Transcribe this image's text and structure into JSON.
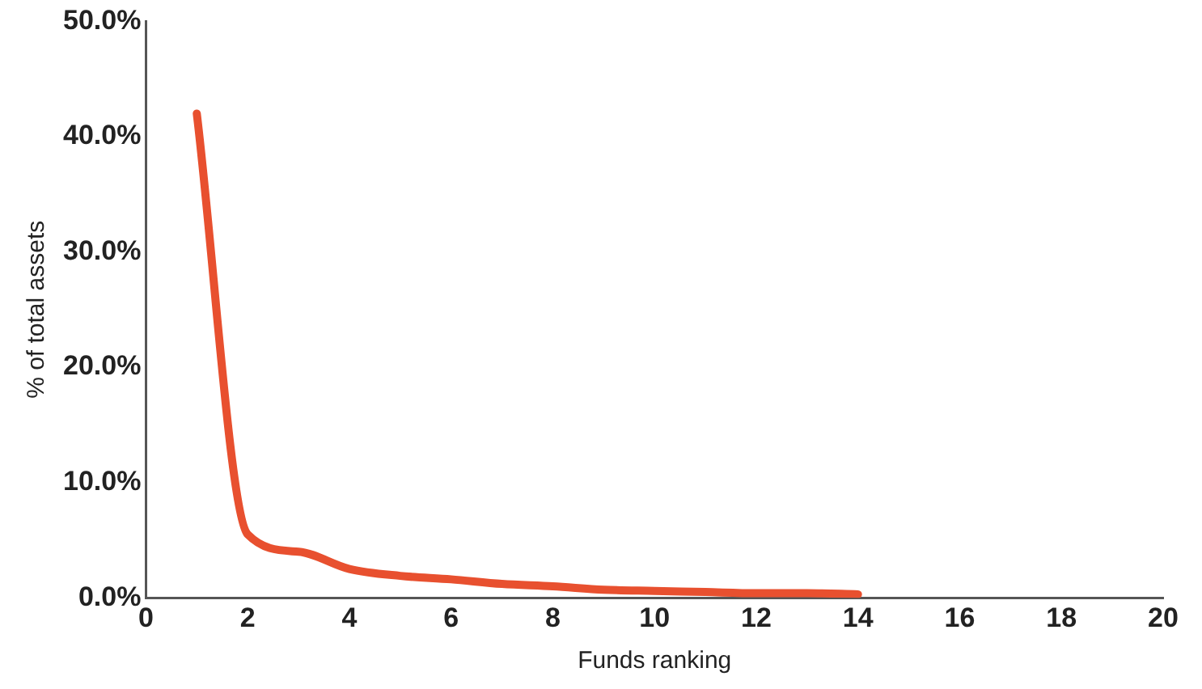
{
  "chart_data": {
    "type": "line",
    "xlabel": "Funds ranking",
    "ylabel": "% of total assets",
    "x": [
      1,
      2,
      3,
      4,
      5,
      6,
      7,
      8,
      9,
      10,
      11,
      12,
      13,
      14
    ],
    "series": [
      {
        "color": "#e8502f",
        "values": [
          42,
          5.5,
          4,
          2.5,
          1.9,
          1.6,
          1.2,
          1,
          0.7,
          0.6,
          0.5,
          0.4,
          0.4,
          0.3
        ]
      }
    ],
    "xlim": [
      0,
      20
    ],
    "xticks": [
      0,
      2,
      4,
      6,
      8,
      10,
      12,
      14,
      16,
      18,
      20
    ],
    "ylim": [
      0,
      50
    ],
    "yticks": [
      {
        "value": 0,
        "label": "0.0%"
      },
      {
        "value": 10,
        "label": "10.0%"
      },
      {
        "value": 20,
        "label": "20.0%"
      },
      {
        "value": 30,
        "label": "30.0%"
      },
      {
        "value": 40,
        "label": "40.0%"
      },
      {
        "value": 50,
        "label": "50.0%"
      }
    ],
    "grid": false,
    "legend": false,
    "marker": "none",
    "line_style": "solid"
  }
}
